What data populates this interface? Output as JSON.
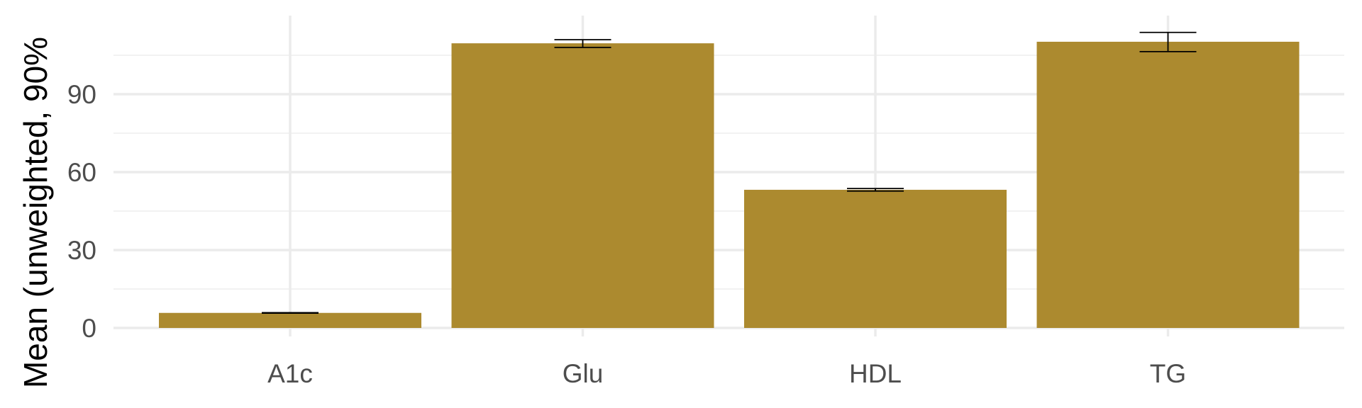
{
  "chart_data": {
    "type": "bar",
    "categories": [
      "A1c",
      "Glu",
      "HDL",
      "TG"
    ],
    "values": [
      5.8,
      109.6,
      53.2,
      110.2
    ],
    "error_low": [
      5.7,
      108.0,
      52.7,
      106.4
    ],
    "error_high": [
      5.9,
      111.0,
      53.7,
      113.8
    ],
    "title": "",
    "xlabel": "",
    "ylabel": "Mean (unweighted, 90%",
    "ylim": [
      0,
      120
    ],
    "yticks": [
      0,
      30,
      60,
      90
    ],
    "ytick_labels": [
      "0",
      "30",
      "60",
      "90"
    ],
    "grid": true,
    "bar_color": "#ac8a2f",
    "error_color": "#000000"
  }
}
